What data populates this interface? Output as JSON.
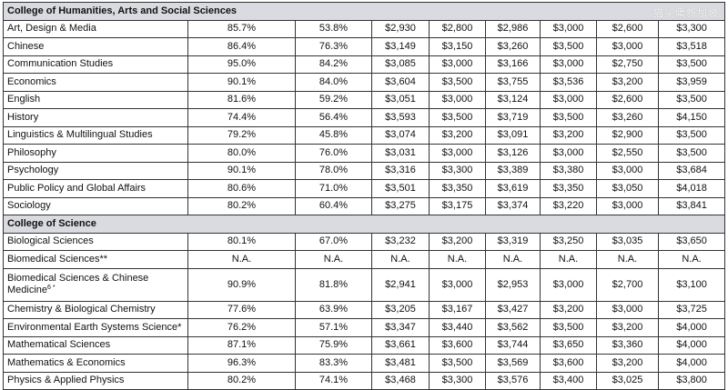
{
  "watermark": "猫头鹰新加坡",
  "sections": [
    {
      "title": "College of Humanities, Arts and Social Sciences",
      "rows": [
        {
          "name": "Art, Design & Media",
          "cells": [
            "85.7%",
            "53.8%",
            "$2,930",
            "$2,800",
            "$2,986",
            "$3,000",
            "$2,600",
            "$3,300"
          ]
        },
        {
          "name": "Chinese",
          "cells": [
            "86.4%",
            "76.3%",
            "$3,149",
            "$3,150",
            "$3,260",
            "$3,500",
            "$3,000",
            "$3,518"
          ]
        },
        {
          "name": "Communication Studies",
          "cells": [
            "95.0%",
            "84.2%",
            "$3,085",
            "$3,000",
            "$3,166",
            "$3,000",
            "$2,750",
            "$3,500"
          ]
        },
        {
          "name": "Economics",
          "cells": [
            "90.1%",
            "84.0%",
            "$3,604",
            "$3,500",
            "$3,755",
            "$3,536",
            "$3,200",
            "$3,959"
          ]
        },
        {
          "name": "English",
          "cells": [
            "81.6%",
            "59.2%",
            "$3,051",
            "$3,000",
            "$3,124",
            "$3,000",
            "$2,600",
            "$3,500"
          ]
        },
        {
          "name": "History",
          "cells": [
            "74.4%",
            "56.4%",
            "$3,593",
            "$3,500",
            "$3,719",
            "$3,500",
            "$3,260",
            "$4,150"
          ]
        },
        {
          "name": "Linguistics & Multilingual Studies",
          "cells": [
            "79.2%",
            "45.8%",
            "$3,074",
            "$3,200",
            "$3,091",
            "$3,200",
            "$2,900",
            "$3,500"
          ]
        },
        {
          "name": "Philosophy",
          "cells": [
            "80.0%",
            "76.0%",
            "$3,031",
            "$3,000",
            "$3,126",
            "$3,000",
            "$2,550",
            "$3,500"
          ]
        },
        {
          "name": "Psychology",
          "cells": [
            "90.1%",
            "78.0%",
            "$3,316",
            "$3,300",
            "$3,389",
            "$3,380",
            "$3,000",
            "$3,684"
          ]
        },
        {
          "name": "Public Policy and Global Affairs",
          "cells": [
            "80.6%",
            "71.0%",
            "$3,501",
            "$3,350",
            "$3,619",
            "$3,350",
            "$3,050",
            "$4,018"
          ]
        },
        {
          "name": "Sociology",
          "cells": [
            "80.2%",
            "60.4%",
            "$3,275",
            "$3,175",
            "$3,374",
            "$3,220",
            "$3,000",
            "$3,841"
          ]
        }
      ]
    },
    {
      "title": "College of Science",
      "rows": [
        {
          "name": "Biological Sciences",
          "cells": [
            "80.1%",
            "67.0%",
            "$3,232",
            "$3,200",
            "$3,319",
            "$3,250",
            "$3,035",
            "$3,650"
          ]
        },
        {
          "name": "Biomedical Sciences**",
          "cells": [
            "N.A.",
            "N.A.",
            "N.A.",
            "N.A.",
            "N.A.",
            "N.A.",
            "N.A.",
            "N.A."
          ]
        },
        {
          "name_line1": "Biomedical Sciences & Chinese",
          "name_line2": "Medicine",
          "name_sup": "6 *",
          "cells": [
            "90.9%",
            "81.8%",
            "$2,941",
            "$3,000",
            "$2,953",
            "$3,000",
            "$2,700",
            "$3,100"
          ]
        },
        {
          "name": "Chemistry & Biological Chemistry",
          "cells": [
            "77.6%",
            "63.9%",
            "$3,205",
            "$3,167",
            "$3,427",
            "$3,200",
            "$3,000",
            "$3,725"
          ]
        },
        {
          "name": "Environmental Earth Systems Science*",
          "cells": [
            "76.2%",
            "57.1%",
            "$3,347",
            "$3,440",
            "$3,562",
            "$3,500",
            "$3,200",
            "$4,000"
          ]
        },
        {
          "name": "Mathematical Sciences",
          "cells": [
            "87.1%",
            "75.9%",
            "$3,661",
            "$3,600",
            "$3,744",
            "$3,650",
            "$3,360",
            "$4,000"
          ]
        },
        {
          "name": "Mathematics & Economics",
          "cells": [
            "96.3%",
            "83.3%",
            "$3,481",
            "$3,500",
            "$3,569",
            "$3,600",
            "$3,200",
            "$4,000"
          ]
        },
        {
          "name": "Physics & Applied Physics",
          "cells": [
            "80.2%",
            "74.1%",
            "$3,468",
            "$3,300",
            "$3,576",
            "$3,400",
            "$3,025",
            "$3,800"
          ]
        }
      ]
    }
  ]
}
